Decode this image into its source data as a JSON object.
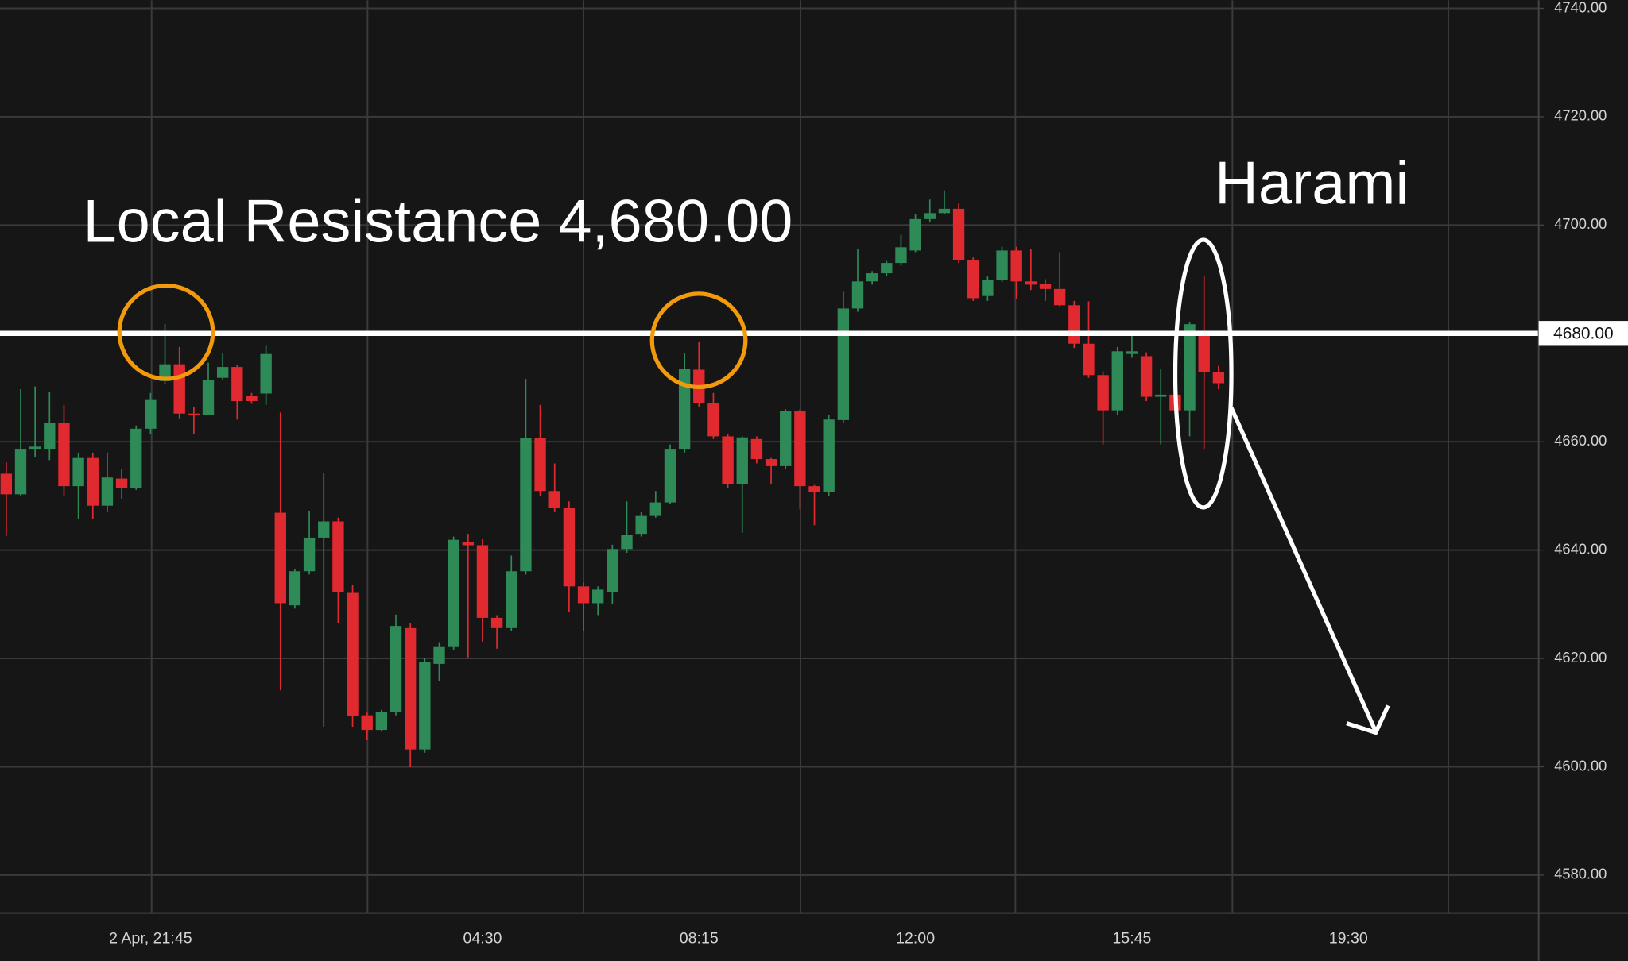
{
  "chart_data": {
    "type": "candlestick",
    "categories": [
      null,
      null,
      null,
      null,
      null,
      null,
      null,
      null,
      null,
      null,
      "2 Apr, 21:45",
      null,
      null,
      null,
      null,
      null,
      null,
      null,
      null,
      null,
      null,
      null,
      null,
      null,
      null,
      null,
      null,
      null,
      null,
      null,
      null,
      null,
      null,
      "04:30",
      null,
      null,
      null,
      null,
      null,
      null,
      null,
      null,
      null,
      null,
      null,
      null,
      null,
      null,
      "08:15",
      null,
      null,
      null,
      null,
      null,
      null,
      null,
      null,
      null,
      null,
      null,
      null,
      null,
      null,
      "12:00",
      null,
      null,
      null,
      null,
      null,
      null,
      null,
      null,
      null,
      null,
      null,
      null,
      null,
      null,
      "15:45",
      null,
      null,
      null,
      null,
      null,
      null,
      null,
      null,
      null,
      null,
      null,
      null,
      null,
      null,
      "19:30"
    ],
    "open": [
      4654.1,
      4650.3,
      4658.7,
      4658.7,
      4663.5,
      4651.8,
      4657.0,
      4648.2,
      4653.2,
      4651.5,
      4662.4,
      4671.2,
      4674.3,
      4665.2,
      4664.9,
      4671.8,
      4673.8,
      4668.5,
      4668.9,
      4646.9,
      4629.8,
      4636.1,
      4642.3,
      4645.3,
      4632.1,
      4609.5,
      4606.8,
      4610.1,
      4625.6,
      4603.2,
      4619.0,
      4622.1,
      4641.5,
      4640.9,
      4627.5,
      4625.6,
      4636.1,
      4660.7,
      4650.9,
      4647.8,
      4633.3,
      4630.2,
      4632.3,
      4640.2,
      4643.0,
      4646.3,
      4648.8,
      4658.7,
      4673.3,
      4667.2,
      4661.0,
      4652.2,
      4660.5,
      4656.8,
      4655.5,
      4665.6,
      4651.8,
      4650.7,
      4664.0,
      4684.6,
      4689.6,
      4691.1,
      4693.0,
      4695.3,
      4701.1,
      4702.2,
      4703.0,
      4693.6,
      4686.9,
      4689.8,
      4695.3,
      4689.6,
      4689.2,
      4688.2,
      4685.2,
      4678.1,
      4672.3,
      4665.8,
      4676.2,
      4675.8,
      4668.3,
      4668.7,
      4665.8,
      4679.6,
      4672.9,
      null,
      null,
      null,
      null,
      null,
      null,
      null,
      null,
      null
    ],
    "high": [
      4656.2,
      4669.7,
      4670.2,
      4669.2,
      4666.8,
      4658.0,
      4658.0,
      4658.0,
      4655.0,
      4663.0,
      4669.0,
      4681.7,
      4677.5,
      4666.4,
      4674.6,
      4676.4,
      4674.1,
      4669.0,
      4677.7,
      4665.4,
      4636.5,
      4647.2,
      4654.3,
      4646.0,
      4633.6,
      4610.0,
      4610.5,
      4628.1,
      4626.6,
      4620.0,
      4623.0,
      4642.5,
      4643.0,
      4642.0,
      4628.0,
      4639.0,
      4671.6,
      4666.8,
      4656.0,
      4649.0,
      4634.0,
      4633.3,
      4641.0,
      4649.0,
      4647.0,
      4650.9,
      4659.5,
      4676.4,
      4678.5,
      4669.0,
      4661.5,
      4661.0,
      4661.0,
      4657.0,
      4666.0,
      4666.0,
      4652.0,
      4665.0,
      4687.7,
      4695.5,
      4691.5,
      4693.5,
      4698.2,
      4702.0,
      4704.7,
      4706.4,
      4704.0,
      4694.0,
      4690.5,
      4696.0,
      4696.0,
      4695.5,
      4690.0,
      4695.0,
      4686.0,
      4685.9,
      4673.0,
      4677.5,
      4680.4,
      4676.5,
      4673.5,
      4674.3,
      4682.1,
      4690.7,
      4674.0,
      null,
      null,
      null,
      null,
      null,
      null,
      null,
      null,
      null
    ],
    "low": [
      4642.6,
      4649.9,
      4657.2,
      4656.6,
      4649.9,
      4645.7,
      4645.7,
      4647.0,
      4649.5,
      4651.1,
      4661.4,
      4670.6,
      4664.3,
      4661.4,
      4664.9,
      4671.4,
      4664.1,
      4667.0,
      4666.8,
      4614.1,
      4629.2,
      4635.5,
      4607.4,
      4626.6,
      4607.4,
      4604.9,
      4606.5,
      4609.5,
      4599.9,
      4602.6,
      4615.8,
      4621.5,
      4620.2,
      4623.1,
      4621.8,
      4625.0,
      4635.5,
      4650.0,
      4647.0,
      4628.5,
      4625.0,
      4628.0,
      4630.0,
      4639.5,
      4642.5,
      4646.0,
      4648.5,
      4658.0,
      4666.5,
      4660.5,
      4651.5,
      4643.2,
      4656.0,
      4652.2,
      4655.0,
      4647.6,
      4644.6,
      4650.0,
      4663.5,
      4684.0,
      4689.0,
      4690.5,
      4692.5,
      4695.0,
      4700.5,
      4702.0,
      4693.0,
      4686.0,
      4686.0,
      4689.5,
      4686.3,
      4688.0,
      4686.0,
      4685.0,
      4677.3,
      4671.8,
      4659.5,
      4665.0,
      4675.5,
      4667.5,
      4659.5,
      4665.0,
      4661.0,
      4658.7,
      4669.7,
      null,
      null,
      null,
      null,
      null,
      null,
      null,
      null,
      null
    ],
    "close": [
      4650.3,
      4658.7,
      4659.1,
      4663.5,
      4651.8,
      4657.0,
      4648.2,
      4653.4,
      4651.5,
      4662.4,
      4667.7,
      4674.3,
      4665.2,
      4664.9,
      4671.4,
      4673.8,
      4667.5,
      4667.5,
      4676.2,
      4630.2,
      4636.1,
      4642.3,
      4645.3,
      4632.3,
      4609.3,
      4606.8,
      4610.1,
      4626.0,
      4603.2,
      4619.3,
      4622.1,
      4641.9,
      4640.9,
      4627.5,
      4625.6,
      4636.1,
      4660.7,
      4650.9,
      4647.8,
      4633.3,
      4630.2,
      4632.7,
      4640.2,
      4642.8,
      4646.3,
      4648.8,
      4658.7,
      4673.5,
      4667.2,
      4661.0,
      4652.2,
      4660.8,
      4656.8,
      4655.5,
      4665.6,
      4651.8,
      4650.7,
      4664.1,
      4684.6,
      4689.6,
      4691.1,
      4693.0,
      4695.9,
      4701.1,
      4702.2,
      4703.0,
      4693.6,
      4686.5,
      4689.8,
      4695.3,
      4689.6,
      4689.0,
      4688.2,
      4685.2,
      4678.1,
      4672.3,
      4665.8,
      4676.7,
      4676.7,
      4668.3,
      4668.7,
      4665.8,
      4681.7,
      4672.9,
      4670.8,
      null,
      null,
      null,
      null,
      null,
      null,
      null,
      null,
      null
    ],
    "up_color": "#2e8a57",
    "down_color": "#e02a2f",
    "ylim": [
      4573,
      4741.5
    ],
    "yticks": [
      {
        "value": 4580,
        "label": "4580.00"
      },
      {
        "value": 4600,
        "label": "4600.00"
      },
      {
        "value": 4620,
        "label": "4620.00"
      },
      {
        "value": 4640,
        "label": "4640.00"
      },
      {
        "value": 4660,
        "label": "4660.00"
      },
      {
        "value": 4680,
        "label": "4680.00"
      },
      {
        "value": 4700,
        "label": "4700.00"
      },
      {
        "value": 4720,
        "label": "4720.00"
      },
      {
        "value": 4740,
        "label": "4740.00"
      }
    ],
    "grid": true,
    "resistance": {
      "value": 4680,
      "label": "4680.00"
    },
    "annotations": [
      {
        "text": "Local Resistance 4,680.00"
      },
      {
        "text": "Harami"
      }
    ]
  }
}
